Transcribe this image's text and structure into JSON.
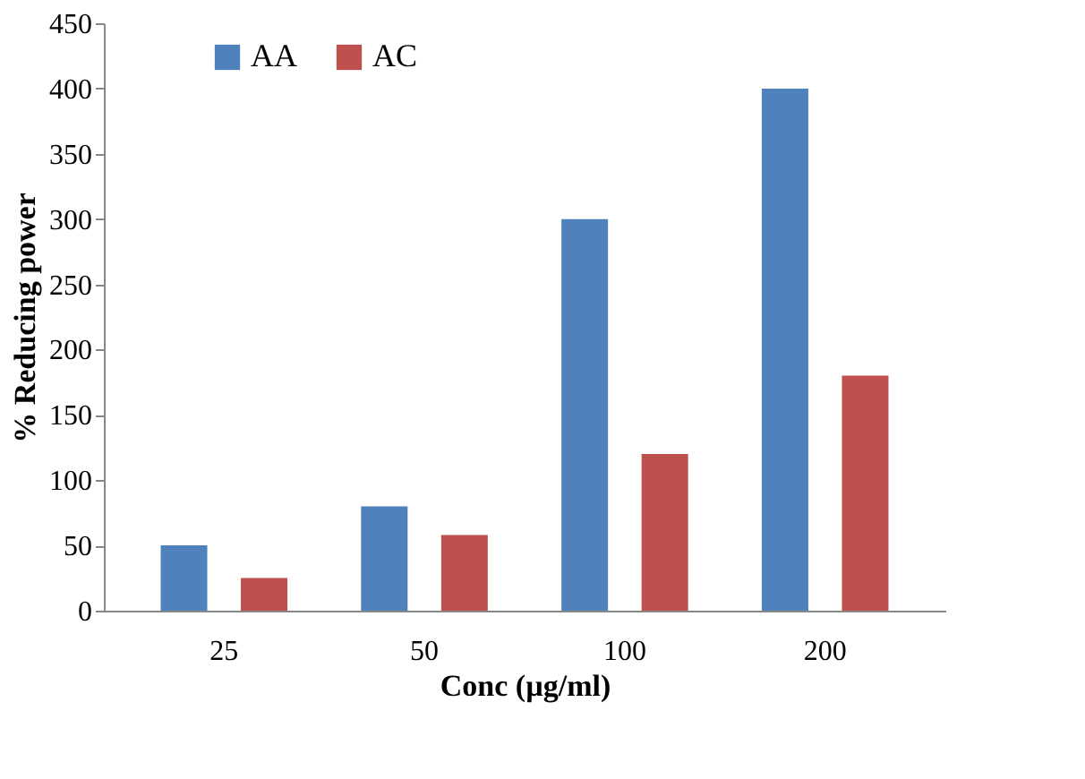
{
  "chart_data": {
    "type": "bar",
    "xlabel": "Conc (µg/ml)",
    "ylabel": "% Reducing power",
    "categories": [
      "25",
      "50",
      "100",
      "200"
    ],
    "series": [
      {
        "name": "AA",
        "color": "#4f81bd",
        "values": [
          50,
          80,
          300,
          400
        ]
      },
      {
        "name": "AC",
        "color": "#c0504d",
        "values": [
          25,
          58,
          120,
          180
        ]
      }
    ],
    "ylim": [
      0,
      450
    ],
    "yticks": [
      0,
      50,
      100,
      150,
      200,
      250,
      300,
      350,
      400,
      450
    ],
    "grid": false,
    "legend": "top left"
  }
}
